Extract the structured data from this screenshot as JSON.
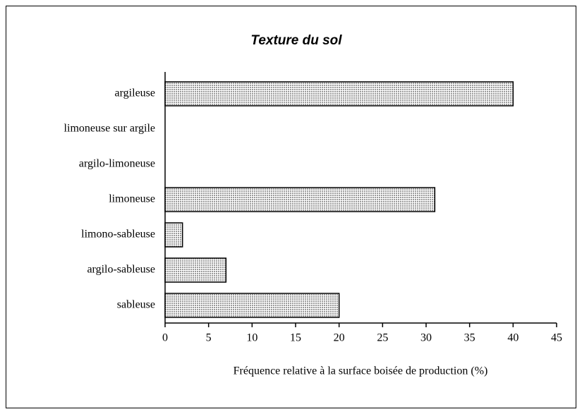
{
  "chart_data": {
    "type": "barh",
    "title": "Texture du sol",
    "x_label": "Fréquence relative à la surface boisée de production (%)",
    "categories": [
      "argileuse",
      "limoneuse sur argile",
      "argilo-limoneuse",
      "limoneuse",
      "limono-sableuse",
      "argilo-sableuse",
      "sableuse"
    ],
    "values": [
      40,
      0,
      0,
      31,
      2,
      7,
      20
    ],
    "color": "#d9d9d9",
    "xlim": [
      0,
      45
    ],
    "xticks": [
      0,
      5,
      10,
      15,
      20,
      25,
      30,
      35,
      40,
      45
    ],
    "grid": false
  }
}
